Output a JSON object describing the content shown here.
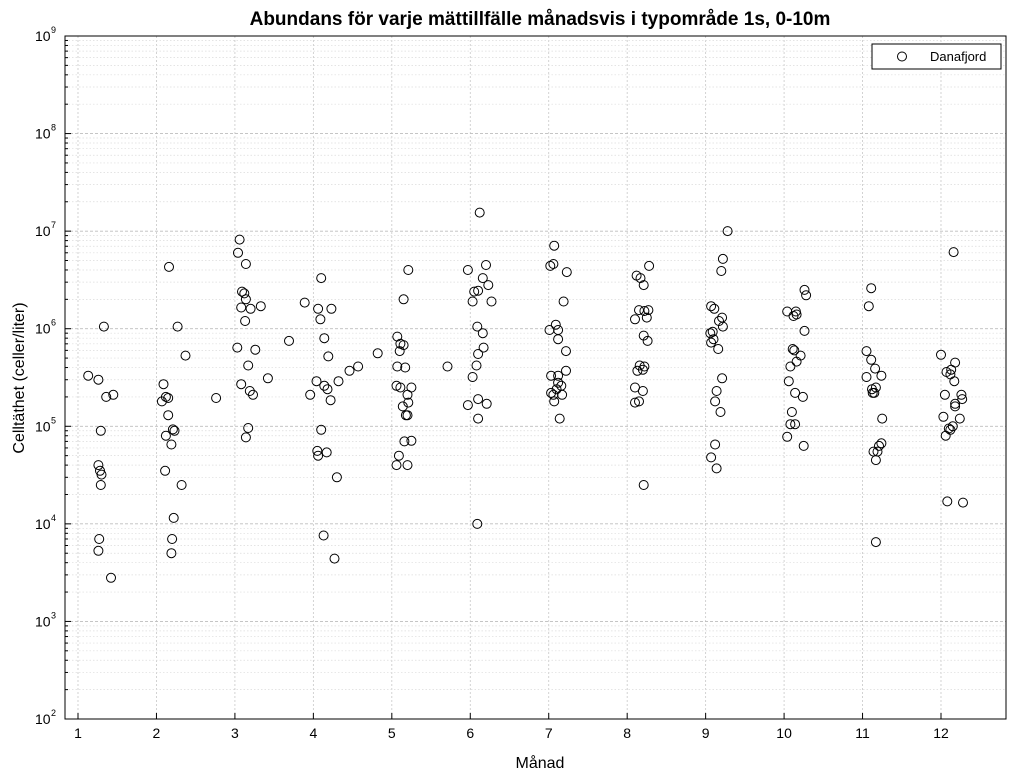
{
  "chart_data": {
    "type": "scatter",
    "title": "Abundans för varje mättillfälle månadsvis i typområde 1s, 0-10m",
    "xlabel": "Månad",
    "ylabel": "Celltäthet (celler/liter)",
    "xlim": [
      0.8,
      13
    ],
    "ylim": [
      100,
      1000000000
    ],
    "yscale": "log",
    "grid": true,
    "legend_position": "top-right",
    "x_ticks": [
      "1",
      "2",
      "3",
      "4",
      "5",
      "6",
      "7",
      "8",
      "9",
      "10",
      "11",
      "12"
    ],
    "y_ticks": [
      {
        "base": "10",
        "exp": "2",
        "value": 100
      },
      {
        "base": "10",
        "exp": "3",
        "value": 1000
      },
      {
        "base": "10",
        "exp": "4",
        "value": 10000
      },
      {
        "base": "10",
        "exp": "5",
        "value": 100000
      },
      {
        "base": "10",
        "exp": "6",
        "value": 1000000
      },
      {
        "base": "10",
        "exp": "7",
        "value": 10000000
      },
      {
        "base": "10",
        "exp": "8",
        "value": 100000000
      },
      {
        "base": "10",
        "exp": "9",
        "value": 1000000000
      }
    ],
    "series": [
      {
        "name": "Danafjord",
        "points": [
          [
            1.13,
            330000
          ],
          [
            1.26,
            300000
          ],
          [
            1.33,
            1050000
          ],
          [
            1.36,
            200000
          ],
          [
            1.45,
            210000
          ],
          [
            1.29,
            90000
          ],
          [
            1.26,
            40000
          ],
          [
            1.28,
            35000
          ],
          [
            1.3,
            32000
          ],
          [
            1.29,
            25000
          ],
          [
            1.27,
            7000
          ],
          [
            1.26,
            5300
          ],
          [
            1.42,
            2800
          ],
          [
            2.07,
            180000
          ],
          [
            2.09,
            270000
          ],
          [
            2.12,
            200000
          ],
          [
            2.15,
            195000
          ],
          [
            2.16,
            4300000
          ],
          [
            2.15,
            130000
          ],
          [
            2.23,
            90000
          ],
          [
            2.21,
            93000
          ],
          [
            2.12,
            80000
          ],
          [
            2.19,
            65000
          ],
          [
            2.11,
            35000
          ],
          [
            2.32,
            25000
          ],
          [
            2.22,
            11500
          ],
          [
            2.2,
            7000
          ],
          [
            2.19,
            5000
          ],
          [
            2.27,
            1050000
          ],
          [
            2.37,
            530000
          ],
          [
            2.76,
            195000
          ],
          [
            3.03,
            640000
          ],
          [
            3.04,
            6000000
          ],
          [
            3.06,
            8200000
          ],
          [
            3.09,
            2400000
          ],
          [
            3.14,
            4600000
          ],
          [
            3.12,
            2300000
          ],
          [
            3.14,
            2000000
          ],
          [
            3.08,
            1650000
          ],
          [
            3.2,
            1600000
          ],
          [
            3.33,
            1700000
          ],
          [
            3.13,
            1200000
          ],
          [
            3.26,
            610000
          ],
          [
            3.17,
            420000
          ],
          [
            3.08,
            270000
          ],
          [
            3.19,
            230000
          ],
          [
            3.23,
            210000
          ],
          [
            3.17,
            96000
          ],
          [
            3.14,
            77000
          ],
          [
            3.42,
            310000
          ],
          [
            3.69,
            750000
          ],
          [
            3.89,
            1850000
          ],
          [
            4.06,
            1600000
          ],
          [
            4.09,
            1250000
          ],
          [
            4.14,
            800000
          ],
          [
            4.1,
            3300000
          ],
          [
            4.23,
            1600000
          ],
          [
            4.19,
            520000
          ],
          [
            4.04,
            290000
          ],
          [
            4.14,
            260000
          ],
          [
            4.18,
            240000
          ],
          [
            4.22,
            185000
          ],
          [
            3.96,
            210000
          ],
          [
            4.1,
            92000
          ],
          [
            4.05,
            56000
          ],
          [
            4.06,
            50000
          ],
          [
            4.17,
            54000
          ],
          [
            4.3,
            30000
          ],
          [
            4.13,
            7600
          ],
          [
            4.27,
            4400
          ],
          [
            4.32,
            290000
          ],
          [
            4.46,
            370000
          ],
          [
            4.57,
            410000
          ],
          [
            4.82,
            560000
          ],
          [
            5.07,
            830000
          ],
          [
            5.11,
            700000
          ],
          [
            5.15,
            680000
          ],
          [
            5.1,
            590000
          ],
          [
            5.07,
            410000
          ],
          [
            5.17,
            400000
          ],
          [
            5.06,
            260000
          ],
          [
            5.11,
            250000
          ],
          [
            5.25,
            250000
          ],
          [
            5.2,
            210000
          ],
          [
            5.21,
            175000
          ],
          [
            5.14,
            160000
          ],
          [
            5.18,
            130000
          ],
          [
            5.2,
            130000
          ],
          [
            5.16,
            70000
          ],
          [
            5.25,
            71000
          ],
          [
            5.09,
            50000
          ],
          [
            5.06,
            40000
          ],
          [
            5.2,
            40000
          ],
          [
            5.15,
            2000000
          ],
          [
            5.21,
            4000000
          ],
          [
            5.71,
            410000
          ],
          [
            5.97,
            4000000
          ],
          [
            6.03,
            1900000
          ],
          [
            6.05,
            2400000
          ],
          [
            6.1,
            2450000
          ],
          [
            6.16,
            3300000
          ],
          [
            6.2,
            4500000
          ],
          [
            6.23,
            2800000
          ],
          [
            6.27,
            1900000
          ],
          [
            6.09,
            1050000
          ],
          [
            6.16,
            900000
          ],
          [
            6.17,
            640000
          ],
          [
            6.1,
            550000
          ],
          [
            6.08,
            420000
          ],
          [
            6.03,
            320000
          ],
          [
            5.97,
            165000
          ],
          [
            6.1,
            190000
          ],
          [
            6.21,
            170000
          ],
          [
            6.1,
            120000
          ],
          [
            6.12,
            15500000
          ],
          [
            6.09,
            10000
          ],
          [
            7.07,
            7100000
          ],
          [
            7.02,
            4400000
          ],
          [
            7.06,
            4600000
          ],
          [
            7.23,
            3800000
          ],
          [
            7.19,
            1900000
          ],
          [
            7.01,
            970000
          ],
          [
            7.09,
            1100000
          ],
          [
            7.12,
            970000
          ],
          [
            7.12,
            780000
          ],
          [
            7.22,
            590000
          ],
          [
            7.22,
            370000
          ],
          [
            7.03,
            330000
          ],
          [
            7.12,
            330000
          ],
          [
            7.12,
            280000
          ],
          [
            7.16,
            260000
          ],
          [
            7.03,
            220000
          ],
          [
            7.06,
            210000
          ],
          [
            7.1,
            240000
          ],
          [
            7.17,
            210000
          ],
          [
            7.07,
            180000
          ],
          [
            7.14,
            120000
          ],
          [
            8.12,
            3500000
          ],
          [
            8.17,
            3300000
          ],
          [
            8.21,
            2800000
          ],
          [
            8.28,
            4400000
          ],
          [
            8.1,
            1250000
          ],
          [
            8.15,
            1550000
          ],
          [
            8.22,
            1520000
          ],
          [
            8.27,
            1550000
          ],
          [
            8.25,
            1300000
          ],
          [
            8.21,
            850000
          ],
          [
            8.26,
            750000
          ],
          [
            8.16,
            420000
          ],
          [
            8.22,
            410000
          ],
          [
            8.13,
            370000
          ],
          [
            8.2,
            380000
          ],
          [
            8.1,
            250000
          ],
          [
            8.2,
            230000
          ],
          [
            8.15,
            180000
          ],
          [
            8.1,
            175000
          ],
          [
            8.21,
            25000
          ],
          [
            9.07,
            1700000
          ],
          [
            9.11,
            1600000
          ],
          [
            9.21,
            1300000
          ],
          [
            9.17,
            1200000
          ],
          [
            9.22,
            1050000
          ],
          [
            9.06,
            900000
          ],
          [
            9.09,
            930000
          ],
          [
            9.1,
            780000
          ],
          [
            9.07,
            720000
          ],
          [
            9.16,
            620000
          ],
          [
            9.21,
            310000
          ],
          [
            9.14,
            230000
          ],
          [
            9.12,
            180000
          ],
          [
            9.19,
            140000
          ],
          [
            9.12,
            65000
          ],
          [
            9.07,
            48000
          ],
          [
            9.14,
            37000
          ],
          [
            9.22,
            5200000
          ],
          [
            9.2,
            3900000
          ],
          [
            9.28,
            10000000
          ],
          [
            10.04,
            1500000
          ],
          [
            10.12,
            1350000
          ],
          [
            10.15,
            1500000
          ],
          [
            10.16,
            1400000
          ],
          [
            10.26,
            2500000
          ],
          [
            10.28,
            2200000
          ],
          [
            10.26,
            950000
          ],
          [
            10.11,
            620000
          ],
          [
            10.13,
            600000
          ],
          [
            10.21,
            530000
          ],
          [
            10.16,
            460000
          ],
          [
            10.08,
            410000
          ],
          [
            10.06,
            290000
          ],
          [
            10.14,
            220000
          ],
          [
            10.24,
            200000
          ],
          [
            10.1,
            140000
          ],
          [
            10.08,
            105000
          ],
          [
            10.14,
            105000
          ],
          [
            10.04,
            78000
          ],
          [
            10.25,
            63000
          ],
          [
            11.05,
            590000
          ],
          [
            11.11,
            480000
          ],
          [
            11.16,
            390000
          ],
          [
            11.24,
            330000
          ],
          [
            11.05,
            320000
          ],
          [
            11.12,
            240000
          ],
          [
            11.15,
            220000
          ],
          [
            11.13,
            220000
          ],
          [
            11.17,
            250000
          ],
          [
            11.25,
            120000
          ],
          [
            11.24,
            67000
          ],
          [
            11.21,
            63000
          ],
          [
            11.14,
            55000
          ],
          [
            11.19,
            55000
          ],
          [
            11.17,
            45000
          ],
          [
            11.17,
            6500
          ],
          [
            11.08,
            1700000
          ],
          [
            11.11,
            2600000
          ],
          [
            12.0,
            540000
          ],
          [
            12.18,
            450000
          ],
          [
            12.07,
            360000
          ],
          [
            12.13,
            380000
          ],
          [
            12.12,
            340000
          ],
          [
            12.17,
            290000
          ],
          [
            12.05,
            210000
          ],
          [
            12.26,
            210000
          ],
          [
            12.27,
            190000
          ],
          [
            12.18,
            170000
          ],
          [
            12.18,
            160000
          ],
          [
            12.03,
            125000
          ],
          [
            12.24,
            120000
          ],
          [
            12.15,
            100000
          ],
          [
            12.1,
            95000
          ],
          [
            12.12,
            92000
          ],
          [
            12.06,
            80000
          ],
          [
            12.08,
            17000
          ],
          [
            12.28,
            16500
          ],
          [
            12.16,
            6100000
          ]
        ]
      }
    ]
  }
}
